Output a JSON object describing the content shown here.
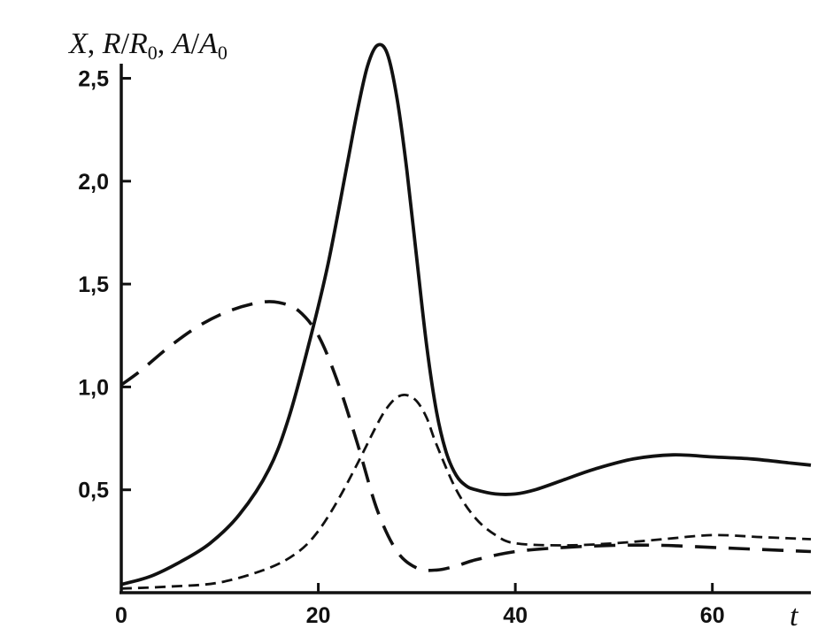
{
  "chart_data": {
    "type": "line",
    "ylabel_parts": [
      "X",
      ", ",
      "R",
      "/",
      "R",
      "0",
      ", ",
      "A",
      "/",
      "A",
      "0"
    ],
    "xlabel": "t",
    "xlim": [
      0,
      70
    ],
    "ylim": [
      0,
      2.7
    ],
    "x_ticks": [
      0,
      20,
      40,
      60
    ],
    "x_tick_labels": [
      "0",
      "20",
      "40",
      "60"
    ],
    "y_ticks": [
      0.5,
      1.0,
      1.5,
      2.0,
      2.5
    ],
    "y_tick_labels": [
      "0,5",
      "1,0",
      "1,5",
      "2,0",
      "2,5"
    ],
    "grid": false,
    "legend": "none",
    "series": [
      {
        "style": "solid",
        "color": "#111111",
        "x": [
          0,
          3,
          6,
          9,
          12,
          15,
          17,
          19,
          21,
          23,
          24,
          25,
          26,
          27,
          28,
          29,
          30,
          31,
          32,
          33,
          34,
          35,
          36,
          38,
          40,
          42,
          45,
          48,
          52,
          56,
          60,
          64,
          68,
          70
        ],
        "y": [
          0.04,
          0.08,
          0.15,
          0.24,
          0.38,
          0.6,
          0.85,
          1.2,
          1.6,
          2.1,
          2.35,
          2.56,
          2.66,
          2.62,
          2.4,
          2.05,
          1.62,
          1.2,
          0.88,
          0.68,
          0.57,
          0.52,
          0.5,
          0.48,
          0.48,
          0.5,
          0.55,
          0.6,
          0.65,
          0.67,
          0.66,
          0.65,
          0.63,
          0.62
        ]
      },
      {
        "style": "long-dash",
        "color": "#111111",
        "x": [
          0,
          2,
          5,
          8,
          11,
          14,
          16,
          18,
          20,
          22,
          24,
          26,
          28,
          30,
          32,
          34,
          36,
          40,
          45,
          50,
          55,
          60,
          65,
          70
        ],
        "y": [
          1.01,
          1.08,
          1.2,
          1.3,
          1.37,
          1.41,
          1.41,
          1.37,
          1.25,
          1.02,
          0.72,
          0.4,
          0.2,
          0.12,
          0.11,
          0.13,
          0.16,
          0.2,
          0.22,
          0.23,
          0.23,
          0.22,
          0.21,
          0.2
        ]
      },
      {
        "style": "short-dash",
        "color": "#111111",
        "x": [
          0,
          5,
          10,
          15,
          18,
          20,
          22,
          24,
          26,
          27,
          28,
          29,
          30,
          31,
          32,
          34,
          36,
          38,
          40,
          45,
          50,
          55,
          60,
          65,
          70
        ],
        "y": [
          0.02,
          0.03,
          0.05,
          0.12,
          0.2,
          0.3,
          0.45,
          0.63,
          0.82,
          0.9,
          0.95,
          0.96,
          0.93,
          0.85,
          0.72,
          0.5,
          0.36,
          0.28,
          0.24,
          0.23,
          0.24,
          0.26,
          0.28,
          0.27,
          0.26
        ]
      }
    ]
  }
}
